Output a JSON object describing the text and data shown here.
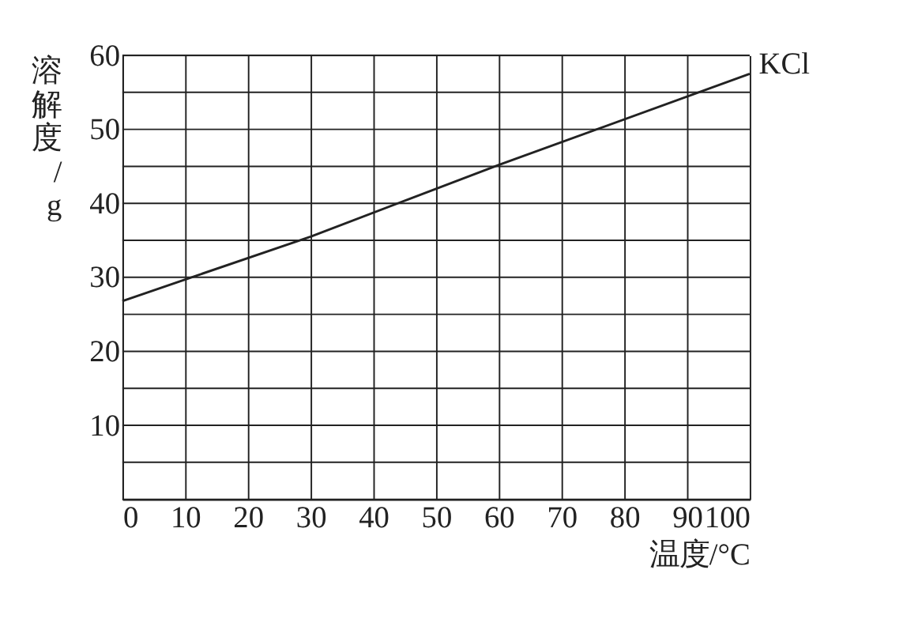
{
  "chart_data": {
    "type": "line",
    "xlabel": "温度/°C",
    "ylabel": "溶解度/g",
    "series": [
      {
        "name": "KCl",
        "color": "#222222",
        "x": [
          0,
          10,
          30,
          60,
          100
        ],
        "values": [
          26.8,
          29.7,
          35.5,
          45.2,
          57.5
        ]
      }
    ],
    "xlim": [
      0,
      100
    ],
    "xticks": [
      0,
      10,
      20,
      30,
      40,
      50,
      60,
      70,
      80,
      90,
      100
    ],
    "ylim": [
      0,
      60
    ],
    "yticks": [
      {
        "value": 0,
        "label": null
      },
      {
        "value": 5,
        "label": null
      },
      10,
      {
        "value": 15,
        "label": null
      },
      20,
      {
        "value": 25,
        "label": null
      },
      30,
      {
        "value": 35,
        "label": null
      },
      40,
      {
        "value": 45,
        "label": null
      },
      50,
      {
        "value": 55,
        "label": null
      },
      60
    ],
    "grid": true,
    "legend": false,
    "marker": "none",
    "line_style": "solid"
  }
}
